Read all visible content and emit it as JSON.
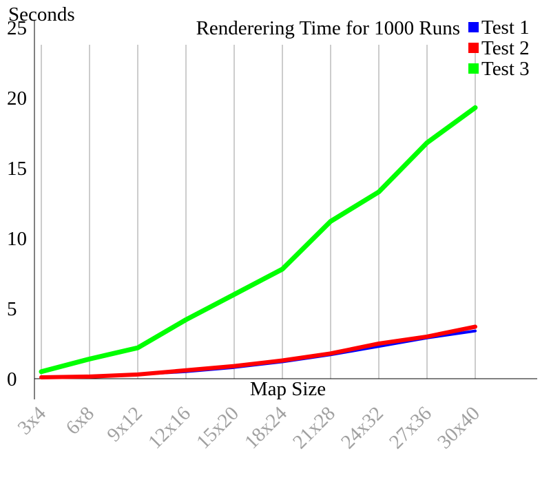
{
  "chart_data": {
    "type": "line",
    "title": "Renderering Time for 1000 Runs",
    "xlabel": "Map Size",
    "ylabel": "Seconds",
    "ylim": [
      0,
      25
    ],
    "yticks": [
      "0",
      "5",
      "10",
      "15",
      "20",
      "25"
    ],
    "categories": [
      "3x4",
      "6x8",
      "9x12",
      "12x16",
      "15x20",
      "18x24",
      "21x28",
      "24x32",
      "27x36",
      "30x40"
    ],
    "legend_position": "top-right",
    "grid": "vertical",
    "series": [
      {
        "name": "Test 1",
        "color": "#0000ff",
        "values": [
          0.1,
          0.15,
          0.3,
          0.5,
          0.8,
          1.2,
          1.7,
          2.3,
          2.9,
          3.4
        ]
      },
      {
        "name": "Test 2",
        "color": "#ff0000",
        "values": [
          0.1,
          0.15,
          0.3,
          0.6,
          0.9,
          1.3,
          1.8,
          2.5,
          3.0,
          3.7
        ]
      },
      {
        "name": "Test 3",
        "color": "#00ff00",
        "values": [
          0.5,
          1.4,
          2.2,
          4.2,
          6.0,
          7.8,
          11.2,
          13.3,
          16.8,
          19.3
        ]
      }
    ]
  }
}
